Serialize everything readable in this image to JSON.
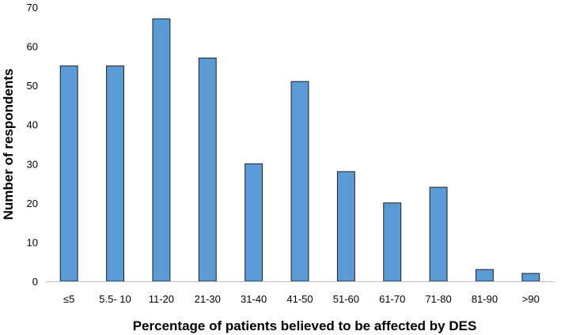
{
  "chart_data": {
    "type": "bar",
    "title": "",
    "xlabel": "Percentage of patients believed to be affected by DES",
    "ylabel": "Number of respondents",
    "categories": [
      "≤5",
      "5.5- 10",
      "11-20",
      "21-30",
      "31-40",
      "41-50",
      "51-60",
      "61-70",
      "71-80",
      "81-90",
      ">90"
    ],
    "series": [
      {
        "values": [
          55,
          55,
          67,
          57,
          30,
          51,
          28,
          20,
          24,
          3,
          2
        ]
      }
    ],
    "ylim": [
      0,
      70
    ],
    "yticks": [
      0,
      10,
      20,
      30,
      40,
      50,
      60,
      70
    ],
    "grid": false,
    "legend": "none",
    "colors": {
      "bar_fill": "#5b9bd5",
      "bar_stroke": "#1f1f1f",
      "axis": "#bfbfbf",
      "text": "#000000"
    }
  }
}
